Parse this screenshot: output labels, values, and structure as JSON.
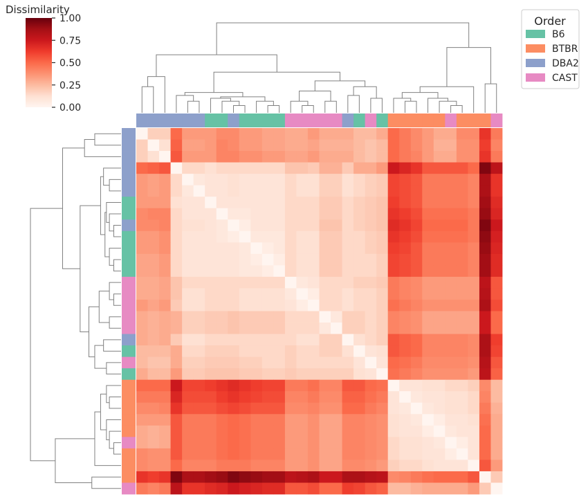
{
  "chart_data": {
    "type": "heatmap",
    "title": "",
    "colorbar": {
      "label": "Dissimilarity",
      "ticks": [
        {
          "value": 0.0,
          "label": "0.00"
        },
        {
          "value": 0.25,
          "label": "0.25"
        },
        {
          "value": 0.5,
          "label": "0.50"
        },
        {
          "value": 0.75,
          "label": "0.75"
        },
        {
          "value": 1.0,
          "label": "1.00"
        }
      ],
      "range": [
        0,
        1
      ],
      "colormap": "Reds"
    },
    "legend": {
      "title": "Order",
      "placement": "top-right",
      "entries": [
        {
          "label": "B6",
          "color": "#66c2a5"
        },
        {
          "label": "BTBR",
          "color": "#fc8d62"
        },
        {
          "label": "DBA2",
          "color": "#8da0cb"
        },
        {
          "label": "CAST",
          "color": "#e78ac3"
        }
      ]
    },
    "annotation_colors": {
      "B6": "#66c2a5",
      "BTBR": "#fc8d62",
      "DBA2": "#8da0cb",
      "CAST": "#e78ac3"
    },
    "row_groups": [
      "DBA2",
      "DBA2",
      "DBA2",
      "DBA2",
      "DBA2",
      "DBA2",
      "B6",
      "B6",
      "DBA2",
      "B6",
      "B6",
      "B6",
      "B6",
      "CAST",
      "CAST",
      "CAST",
      "CAST",
      "CAST",
      "DBA2",
      "B6",
      "CAST",
      "B6",
      "BTBR",
      "BTBR",
      "BTBR",
      "BTBR",
      "BTBR",
      "CAST",
      "BTBR",
      "BTBR",
      "BTBR",
      "CAST"
    ],
    "col_groups": [
      "DBA2",
      "DBA2",
      "DBA2",
      "DBA2",
      "DBA2",
      "DBA2",
      "B6",
      "B6",
      "DBA2",
      "B6",
      "B6",
      "B6",
      "B6",
      "CAST",
      "CAST",
      "CAST",
      "CAST",
      "CAST",
      "DBA2",
      "B6",
      "CAST",
      "B6",
      "BTBR",
      "BTBR",
      "BTBR",
      "BTBR",
      "BTBR",
      "CAST",
      "BTBR",
      "BTBR",
      "BTBR",
      "CAST"
    ],
    "matrix": [
      [
        0.0,
        0.18,
        0.18,
        0.5,
        0.35,
        0.35,
        0.35,
        0.4,
        0.4,
        0.35,
        0.35,
        0.32,
        0.32,
        0.3,
        0.3,
        0.35,
        0.3,
        0.3,
        0.3,
        0.25,
        0.25,
        0.3,
        0.5,
        0.45,
        0.4,
        0.35,
        0.3,
        0.3,
        0.4,
        0.4,
        0.65,
        0.45
      ],
      [
        0.18,
        0.0,
        0.12,
        0.52,
        0.33,
        0.33,
        0.35,
        0.42,
        0.4,
        0.35,
        0.35,
        0.32,
        0.32,
        0.3,
        0.3,
        0.32,
        0.28,
        0.28,
        0.28,
        0.25,
        0.22,
        0.25,
        0.5,
        0.45,
        0.4,
        0.35,
        0.28,
        0.28,
        0.38,
        0.38,
        0.62,
        0.42
      ],
      [
        0.18,
        0.12,
        0.0,
        0.55,
        0.35,
        0.35,
        0.35,
        0.42,
        0.42,
        0.38,
        0.38,
        0.35,
        0.35,
        0.32,
        0.32,
        0.35,
        0.3,
        0.3,
        0.3,
        0.25,
        0.22,
        0.25,
        0.5,
        0.45,
        0.42,
        0.35,
        0.3,
        0.3,
        0.38,
        0.38,
        0.65,
        0.45
      ],
      [
        0.5,
        0.52,
        0.55,
        0.0,
        0.15,
        0.15,
        0.12,
        0.15,
        0.15,
        0.15,
        0.15,
        0.15,
        0.15,
        0.22,
        0.22,
        0.2,
        0.28,
        0.28,
        0.2,
        0.3,
        0.3,
        0.35,
        0.75,
        0.7,
        0.65,
        0.55,
        0.55,
        0.55,
        0.55,
        0.5,
        0.95,
        0.8
      ],
      [
        0.35,
        0.33,
        0.35,
        0.15,
        0.0,
        0.08,
        0.1,
        0.1,
        0.12,
        0.1,
        0.1,
        0.1,
        0.1,
        0.15,
        0.12,
        0.12,
        0.18,
        0.18,
        0.12,
        0.15,
        0.18,
        0.2,
        0.6,
        0.58,
        0.55,
        0.45,
        0.45,
        0.45,
        0.45,
        0.42,
        0.85,
        0.65
      ],
      [
        0.35,
        0.33,
        0.35,
        0.15,
        0.08,
        0.0,
        0.1,
        0.1,
        0.12,
        0.1,
        0.1,
        0.1,
        0.1,
        0.15,
        0.12,
        0.12,
        0.18,
        0.18,
        0.12,
        0.15,
        0.18,
        0.2,
        0.6,
        0.58,
        0.55,
        0.45,
        0.45,
        0.45,
        0.45,
        0.42,
        0.85,
        0.65
      ],
      [
        0.35,
        0.35,
        0.35,
        0.12,
        0.1,
        0.1,
        0.0,
        0.1,
        0.1,
        0.1,
        0.1,
        0.1,
        0.1,
        0.15,
        0.15,
        0.15,
        0.2,
        0.2,
        0.15,
        0.18,
        0.2,
        0.22,
        0.62,
        0.58,
        0.55,
        0.45,
        0.45,
        0.45,
        0.45,
        0.42,
        0.88,
        0.68
      ],
      [
        0.4,
        0.42,
        0.42,
        0.15,
        0.1,
        0.1,
        0.1,
        0.0,
        0.08,
        0.08,
        0.1,
        0.1,
        0.1,
        0.15,
        0.15,
        0.15,
        0.2,
        0.2,
        0.15,
        0.18,
        0.2,
        0.22,
        0.65,
        0.62,
        0.58,
        0.48,
        0.48,
        0.48,
        0.48,
        0.45,
        0.9,
        0.7
      ],
      [
        0.4,
        0.4,
        0.42,
        0.15,
        0.12,
        0.12,
        0.1,
        0.08,
        0.0,
        0.05,
        0.1,
        0.1,
        0.1,
        0.15,
        0.15,
        0.15,
        0.22,
        0.22,
        0.15,
        0.18,
        0.2,
        0.22,
        0.68,
        0.65,
        0.6,
        0.5,
        0.5,
        0.5,
        0.5,
        0.45,
        0.95,
        0.75
      ],
      [
        0.35,
        0.35,
        0.38,
        0.15,
        0.1,
        0.1,
        0.1,
        0.08,
        0.05,
        0.0,
        0.08,
        0.08,
        0.08,
        0.15,
        0.12,
        0.12,
        0.2,
        0.2,
        0.15,
        0.15,
        0.18,
        0.2,
        0.65,
        0.62,
        0.58,
        0.48,
        0.48,
        0.48,
        0.48,
        0.45,
        0.92,
        0.72
      ],
      [
        0.35,
        0.35,
        0.38,
        0.15,
        0.1,
        0.1,
        0.1,
        0.1,
        0.1,
        0.08,
        0.0,
        0.05,
        0.08,
        0.15,
        0.12,
        0.12,
        0.2,
        0.2,
        0.15,
        0.15,
        0.18,
        0.2,
        0.62,
        0.6,
        0.55,
        0.45,
        0.45,
        0.45,
        0.45,
        0.42,
        0.9,
        0.7
      ],
      [
        0.32,
        0.32,
        0.35,
        0.15,
        0.1,
        0.1,
        0.1,
        0.1,
        0.1,
        0.08,
        0.05,
        0.0,
        0.05,
        0.15,
        0.12,
        0.12,
        0.2,
        0.2,
        0.15,
        0.15,
        0.15,
        0.18,
        0.6,
        0.58,
        0.55,
        0.45,
        0.45,
        0.45,
        0.45,
        0.42,
        0.88,
        0.68
      ],
      [
        0.32,
        0.32,
        0.35,
        0.15,
        0.1,
        0.1,
        0.1,
        0.1,
        0.1,
        0.08,
        0.08,
        0.05,
        0.0,
        0.15,
        0.12,
        0.12,
        0.2,
        0.2,
        0.15,
        0.15,
        0.15,
        0.18,
        0.6,
        0.58,
        0.55,
        0.45,
        0.45,
        0.45,
        0.45,
        0.42,
        0.88,
        0.68
      ],
      [
        0.3,
        0.3,
        0.32,
        0.22,
        0.15,
        0.15,
        0.15,
        0.15,
        0.15,
        0.15,
        0.15,
        0.15,
        0.15,
        0.0,
        0.08,
        0.1,
        0.15,
        0.15,
        0.15,
        0.18,
        0.18,
        0.2,
        0.45,
        0.42,
        0.4,
        0.35,
        0.35,
        0.35,
        0.35,
        0.35,
        0.8,
        0.55
      ],
      [
        0.3,
        0.3,
        0.32,
        0.22,
        0.12,
        0.12,
        0.15,
        0.15,
        0.15,
        0.12,
        0.12,
        0.12,
        0.12,
        0.08,
        0.0,
        0.05,
        0.15,
        0.15,
        0.12,
        0.15,
        0.15,
        0.18,
        0.45,
        0.42,
        0.4,
        0.35,
        0.35,
        0.35,
        0.35,
        0.35,
        0.82,
        0.55
      ],
      [
        0.35,
        0.32,
        0.35,
        0.2,
        0.12,
        0.12,
        0.15,
        0.15,
        0.15,
        0.12,
        0.12,
        0.12,
        0.12,
        0.1,
        0.05,
        0.0,
        0.15,
        0.15,
        0.12,
        0.15,
        0.15,
        0.18,
        0.48,
        0.45,
        0.42,
        0.38,
        0.38,
        0.38,
        0.38,
        0.38,
        0.85,
        0.58
      ],
      [
        0.3,
        0.28,
        0.3,
        0.28,
        0.18,
        0.18,
        0.2,
        0.2,
        0.22,
        0.2,
        0.2,
        0.2,
        0.2,
        0.15,
        0.15,
        0.15,
        0.0,
        0.08,
        0.18,
        0.18,
        0.15,
        0.18,
        0.42,
        0.4,
        0.38,
        0.32,
        0.32,
        0.32,
        0.32,
        0.32,
        0.75,
        0.5
      ],
      [
        0.3,
        0.28,
        0.3,
        0.28,
        0.18,
        0.18,
        0.2,
        0.2,
        0.22,
        0.2,
        0.2,
        0.2,
        0.2,
        0.15,
        0.15,
        0.15,
        0.08,
        0.0,
        0.18,
        0.18,
        0.15,
        0.18,
        0.42,
        0.4,
        0.38,
        0.32,
        0.32,
        0.32,
        0.32,
        0.32,
        0.75,
        0.5
      ],
      [
        0.3,
        0.28,
        0.3,
        0.2,
        0.12,
        0.12,
        0.15,
        0.15,
        0.15,
        0.15,
        0.15,
        0.15,
        0.15,
        0.15,
        0.12,
        0.12,
        0.18,
        0.18,
        0.0,
        0.12,
        0.15,
        0.18,
        0.55,
        0.52,
        0.5,
        0.42,
        0.42,
        0.42,
        0.42,
        0.4,
        0.85,
        0.62
      ],
      [
        0.25,
        0.25,
        0.25,
        0.3,
        0.15,
        0.15,
        0.18,
        0.18,
        0.18,
        0.15,
        0.15,
        0.15,
        0.15,
        0.18,
        0.15,
        0.15,
        0.18,
        0.18,
        0.12,
        0.0,
        0.1,
        0.12,
        0.55,
        0.52,
        0.5,
        0.42,
        0.42,
        0.42,
        0.42,
        0.4,
        0.85,
        0.6
      ],
      [
        0.25,
        0.22,
        0.22,
        0.3,
        0.18,
        0.18,
        0.2,
        0.2,
        0.2,
        0.18,
        0.18,
        0.15,
        0.15,
        0.18,
        0.15,
        0.15,
        0.15,
        0.15,
        0.15,
        0.1,
        0.0,
        0.1,
        0.5,
        0.48,
        0.45,
        0.4,
        0.4,
        0.4,
        0.4,
        0.38,
        0.82,
        0.55
      ],
      [
        0.3,
        0.25,
        0.25,
        0.35,
        0.2,
        0.2,
        0.22,
        0.22,
        0.22,
        0.2,
        0.2,
        0.18,
        0.18,
        0.2,
        0.18,
        0.18,
        0.18,
        0.18,
        0.18,
        0.12,
        0.1,
        0.0,
        0.48,
        0.45,
        0.42,
        0.38,
        0.38,
        0.38,
        0.38,
        0.35,
        0.8,
        0.52
      ],
      [
        0.5,
        0.5,
        0.5,
        0.75,
        0.6,
        0.6,
        0.62,
        0.65,
        0.68,
        0.65,
        0.62,
        0.6,
        0.6,
        0.45,
        0.45,
        0.48,
        0.42,
        0.42,
        0.55,
        0.55,
        0.5,
        0.48,
        0.0,
        0.1,
        0.1,
        0.12,
        0.12,
        0.15,
        0.15,
        0.18,
        0.4,
        0.25
      ],
      [
        0.45,
        0.45,
        0.45,
        0.7,
        0.58,
        0.58,
        0.58,
        0.62,
        0.65,
        0.62,
        0.6,
        0.58,
        0.58,
        0.42,
        0.42,
        0.45,
        0.4,
        0.4,
        0.52,
        0.52,
        0.48,
        0.45,
        0.1,
        0.0,
        0.08,
        0.1,
        0.1,
        0.12,
        0.12,
        0.15,
        0.42,
        0.25
      ],
      [
        0.4,
        0.4,
        0.42,
        0.65,
        0.55,
        0.55,
        0.55,
        0.58,
        0.6,
        0.58,
        0.55,
        0.55,
        0.55,
        0.4,
        0.4,
        0.42,
        0.38,
        0.38,
        0.5,
        0.5,
        0.45,
        0.42,
        0.1,
        0.08,
        0.0,
        0.08,
        0.1,
        0.12,
        0.12,
        0.15,
        0.45,
        0.28
      ],
      [
        0.35,
        0.35,
        0.35,
        0.55,
        0.45,
        0.45,
        0.45,
        0.48,
        0.5,
        0.48,
        0.45,
        0.45,
        0.45,
        0.35,
        0.35,
        0.38,
        0.32,
        0.32,
        0.42,
        0.42,
        0.4,
        0.38,
        0.12,
        0.1,
        0.08,
        0.0,
        0.05,
        0.1,
        0.1,
        0.12,
        0.48,
        0.3
      ],
      [
        0.3,
        0.28,
        0.3,
        0.55,
        0.45,
        0.45,
        0.45,
        0.48,
        0.5,
        0.48,
        0.45,
        0.45,
        0.45,
        0.35,
        0.35,
        0.38,
        0.32,
        0.32,
        0.42,
        0.42,
        0.4,
        0.38,
        0.12,
        0.1,
        0.1,
        0.05,
        0.0,
        0.08,
        0.1,
        0.1,
        0.5,
        0.3
      ],
      [
        0.3,
        0.28,
        0.3,
        0.55,
        0.45,
        0.45,
        0.45,
        0.48,
        0.5,
        0.48,
        0.45,
        0.45,
        0.45,
        0.35,
        0.35,
        0.38,
        0.32,
        0.32,
        0.42,
        0.42,
        0.4,
        0.38,
        0.15,
        0.12,
        0.12,
        0.1,
        0.08,
        0.0,
        0.05,
        0.1,
        0.5,
        0.3
      ],
      [
        0.4,
        0.38,
        0.38,
        0.55,
        0.45,
        0.45,
        0.45,
        0.48,
        0.5,
        0.48,
        0.45,
        0.45,
        0.45,
        0.35,
        0.35,
        0.38,
        0.32,
        0.32,
        0.42,
        0.42,
        0.4,
        0.38,
        0.15,
        0.12,
        0.12,
        0.1,
        0.1,
        0.05,
        0.0,
        0.1,
        0.5,
        0.3
      ],
      [
        0.4,
        0.38,
        0.38,
        0.5,
        0.42,
        0.42,
        0.42,
        0.45,
        0.45,
        0.45,
        0.42,
        0.42,
        0.42,
        0.35,
        0.35,
        0.38,
        0.32,
        0.32,
        0.4,
        0.4,
        0.38,
        0.35,
        0.18,
        0.15,
        0.15,
        0.12,
        0.1,
        0.1,
        0.1,
        0.0,
        0.55,
        0.35
      ],
      [
        0.65,
        0.62,
        0.65,
        0.95,
        0.85,
        0.85,
        0.88,
        0.9,
        0.95,
        0.92,
        0.9,
        0.88,
        0.88,
        0.8,
        0.82,
        0.85,
        0.75,
        0.75,
        0.85,
        0.85,
        0.82,
        0.8,
        0.4,
        0.42,
        0.45,
        0.48,
        0.5,
        0.5,
        0.5,
        0.55,
        0.0,
        0.2
      ],
      [
        0.45,
        0.42,
        0.45,
        0.8,
        0.65,
        0.65,
        0.68,
        0.7,
        0.75,
        0.72,
        0.7,
        0.68,
        0.68,
        0.55,
        0.55,
        0.58,
        0.5,
        0.5,
        0.62,
        0.6,
        0.55,
        0.52,
        0.25,
        0.25,
        0.28,
        0.3,
        0.3,
        0.3,
        0.3,
        0.35,
        0.2,
        0.0
      ]
    ]
  }
}
